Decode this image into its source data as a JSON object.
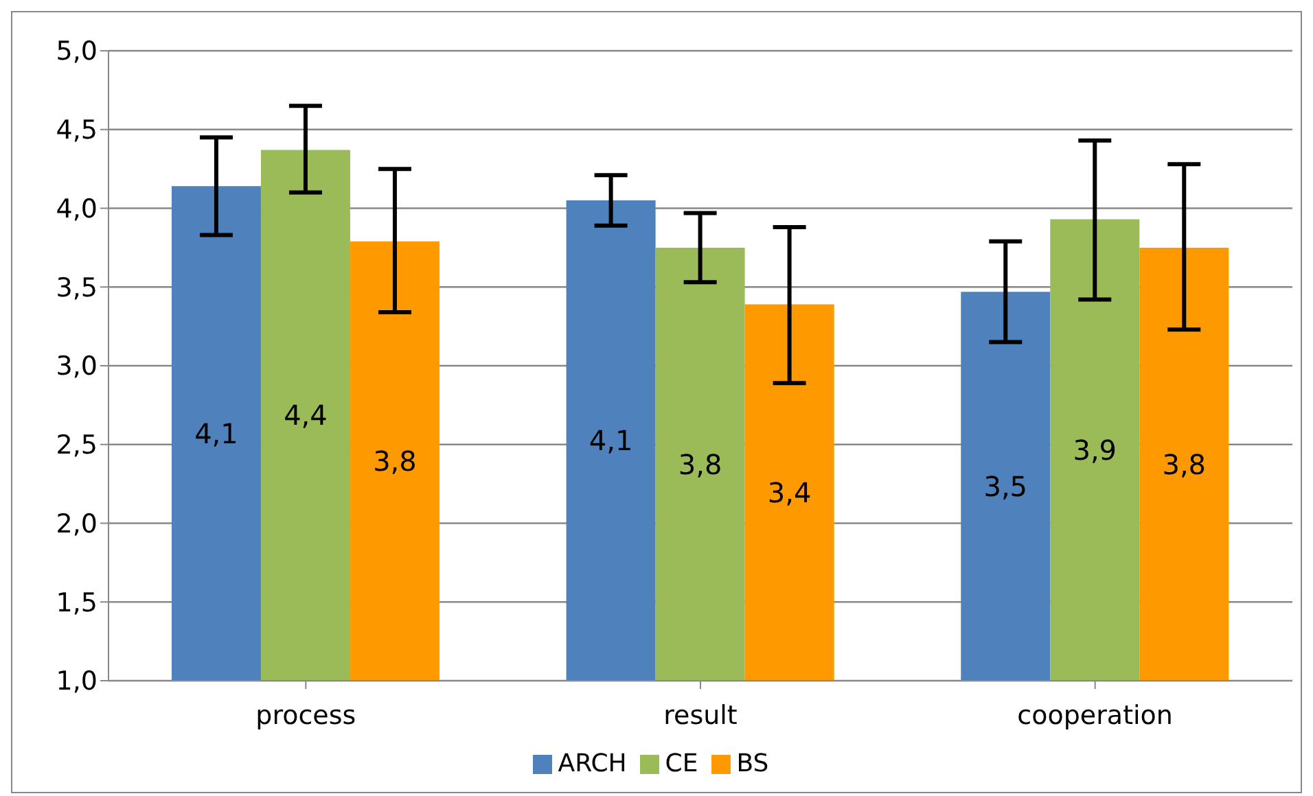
{
  "chart_data": {
    "type": "bar",
    "categories": [
      "process",
      "result",
      "cooperation"
    ],
    "series": [
      {
        "name": "ARCH",
        "color": "#4f81bd",
        "values": [
          4.14,
          4.05,
          3.47
        ],
        "errors": [
          [
            3.83,
            4.45
          ],
          [
            3.89,
            4.21
          ],
          [
            3.15,
            3.79
          ]
        ],
        "value_labels": [
          "4,1",
          "4,1",
          "3,5"
        ]
      },
      {
        "name": "CE",
        "color": "#9bbb59",
        "values": [
          4.37,
          3.75,
          3.93
        ],
        "errors": [
          [
            4.1,
            4.65
          ],
          [
            3.53,
            3.97
          ],
          [
            3.42,
            4.43
          ]
        ],
        "value_labels": [
          "4,4",
          "3,8",
          "3,9"
        ]
      },
      {
        "name": "BS",
        "color": "#ff9900",
        "values": [
          3.79,
          3.39,
          3.75
        ],
        "errors": [
          [
            3.34,
            4.25
          ],
          [
            2.89,
            3.88
          ],
          [
            3.23,
            4.28
          ]
        ],
        "value_labels": [
          "3,8",
          "3,4",
          "3,8"
        ]
      }
    ],
    "ylim": [
      1,
      5
    ],
    "yticks": [
      {
        "value": 1,
        "label": "1,0"
      },
      {
        "value": 1.5,
        "label": "1,5"
      },
      {
        "value": 2,
        "label": "2,0"
      },
      {
        "value": 2.5,
        "label": "2,5"
      },
      {
        "value": 3,
        "label": "3,0"
      },
      {
        "value": 3.5,
        "label": "3,5"
      },
      {
        "value": 4,
        "label": "4,0"
      },
      {
        "value": 4.5,
        "label": "4,5"
      },
      {
        "value": 5,
        "label": "5,0"
      }
    ],
    "grid": "y",
    "legend": "bottom"
  }
}
